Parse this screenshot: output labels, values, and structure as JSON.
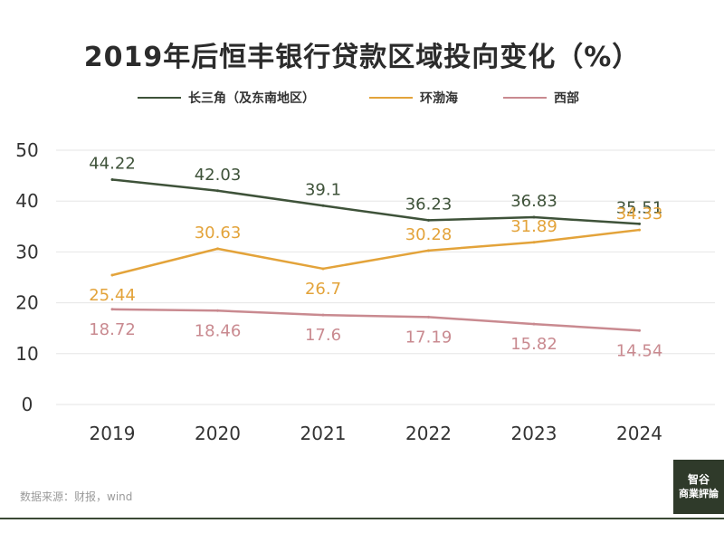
{
  "chart_data": {
    "type": "line",
    "title": "2019年后恒丰银行贷款区域投向变化（%）",
    "categories": [
      "2019",
      "2020",
      "2021",
      "2022",
      "2023",
      "2024"
    ],
    "ylim": [
      0,
      50
    ],
    "yticks": [
      0,
      10,
      20,
      30,
      40,
      50
    ],
    "grid": true,
    "legend_position": "top",
    "series": [
      {
        "name": "长三角（及东南地区）",
        "color": "#3e5239",
        "values": [
          44.22,
          42.03,
          39.1,
          36.23,
          36.83,
          35.51
        ],
        "labels": [
          "44.22",
          "42.03",
          "39.1",
          "36.23",
          "36.83",
          "35.51"
        ]
      },
      {
        "name": "环渤海",
        "color": "#e3a33a",
        "values": [
          25.44,
          30.63,
          26.7,
          30.28,
          31.89,
          34.33
        ],
        "labels": [
          "25.44",
          "30.63",
          "26.7",
          "30.28",
          "31.89",
          "34.33"
        ]
      },
      {
        "name": "西部",
        "color": "#c98a90",
        "values": [
          18.72,
          18.46,
          17.6,
          17.19,
          15.82,
          14.54
        ],
        "labels": [
          "18.72",
          "18.46",
          "17.6",
          "17.19",
          "15.82",
          "14.54"
        ]
      }
    ]
  },
  "source": "数据来源：财报，wind",
  "logo": {
    "line1": "智谷",
    "line2": "商業評論"
  },
  "colors": {
    "grid": "#e6e6e6",
    "axis_text": "#333333",
    "footer": "#3b4a35"
  }
}
